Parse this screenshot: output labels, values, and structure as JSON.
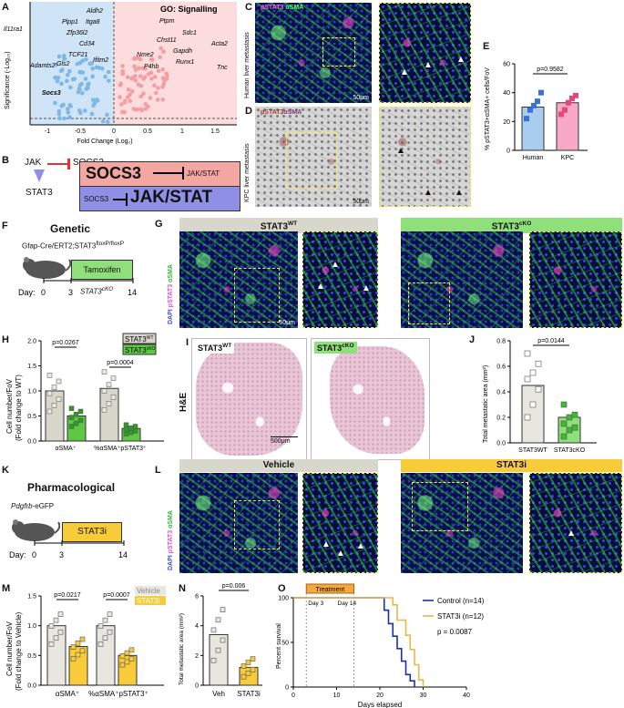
{
  "panels": {
    "A": "A",
    "B": "B",
    "C": "C",
    "D": "D",
    "E": "E",
    "F": "F",
    "G": "G",
    "H": "H",
    "I": "I",
    "J": "J",
    "K": "K",
    "L": "L",
    "M": "M",
    "N": "N",
    "O": "O"
  },
  "panelA": {
    "ylabel": "Significance (-Log₁₀)",
    "xlabel": "Fold Change (Log₂)",
    "go_label": "GO: Signalling",
    "left_genes": [
      "Aldh2",
      "Plpp1",
      "Itga8",
      "Il11ra1",
      "Zfp36l2",
      "Cd34",
      "TCF21",
      "Adamts2",
      "Gls2",
      "Ifitm2",
      "Socs3"
    ],
    "right_genes": [
      "Ptpm",
      "Sdc1",
      "Chst11",
      "Acta2",
      "Gapdh",
      "Nme2",
      "Runx1",
      "P4hb",
      "Tnc"
    ],
    "xticks": [
      "-1",
      "-0.5",
      "0",
      "0.5",
      "1",
      "1.5"
    ]
  },
  "panelB": {
    "jak": "JAK",
    "socs3": "SOCS3",
    "stat3": "STAT3",
    "box1_left": "SOCS3",
    "box1_right": "JAK/STAT",
    "box2_left": "SOCS3",
    "box2_right": "JAK/STAT",
    "colors": {
      "box1": "#f4a6a2",
      "box2": "#8f8fe6"
    }
  },
  "panelC": {
    "stain_pstat": "pSTAT3",
    "stain_asma": "αSMA",
    "side": "Human liver metastasis",
    "scale": "50μm"
  },
  "panelD": {
    "stain_pstat": "pSTAT3",
    "stain_asma": "αSMA",
    "side": "KPC liver metastasis",
    "scale": "50μm"
  },
  "panelE": {
    "ylabel": "% pSTAT3+αSMA+ cells/FoV",
    "pval": "p=0.9582",
    "yticks": [
      "0",
      "20",
      "40",
      "60"
    ],
    "chart_data": {
      "type": "bar",
      "categories": [
        "Human",
        "KPC"
      ],
      "values": [
        30,
        33
      ],
      "ylabel": "% pSTAT3+αSMA+ cells/FoV",
      "ylim": [
        0,
        60
      ],
      "points": [
        [
          22,
          28,
          31,
          34,
          40
        ],
        [
          25,
          28,
          33,
          36,
          38
        ]
      ],
      "colors": [
        "#a9cdee",
        "#f7a9c6"
      ]
    }
  },
  "panelF": {
    "title": "Genetic",
    "genotype": "Gfap-Cre/ERT2;STAT3",
    "genotype_sup": "floxP/floxP",
    "treatment": "Tamoxifen",
    "day_label": "Day:",
    "days": [
      "0",
      "3",
      "14"
    ],
    "cko": "STAT3",
    "cko_sup": "cKO"
  },
  "panelG": {
    "wt": "STAT3",
    "wt_sup": "WT",
    "cko": "STAT3",
    "cko_sup": "cKO",
    "side_dapi": "DAPI",
    "side_pstat": "pSTAT3",
    "side_asma": "αSMA",
    "scale": "50μm",
    "colors": {
      "wt_bar": "#d8d7cc",
      "cko_bar": "#8fe07a"
    }
  },
  "panelH": {
    "ylabel1": "Cell number/FoV",
    "ylabel2": "(Fold change to WT)",
    "p1": "p=0.0267",
    "p2": "p=0.0004",
    "legend_wt": "STAT3",
    "legend_wt_sup": "WT",
    "legend_cko": "STAT3",
    "legend_cko_sup": "cKO",
    "xcat1": "αSMA⁺",
    "xcat2": "%αSMA⁺pSTAT3⁺",
    "yticks": [
      "0.0",
      "0.5",
      "1.0",
      "1.5",
      "2.0"
    ],
    "chart_data": {
      "type": "bar",
      "categories": [
        "αSMA⁺",
        "%αSMA⁺pSTAT3⁺"
      ],
      "series": [
        {
          "name": "STAT3WT",
          "values": [
            1.0,
            1.05
          ]
        },
        {
          "name": "STAT3cKO",
          "values": [
            0.5,
            0.25
          ]
        }
      ],
      "ylim": [
        0,
        2.0
      ],
      "colors": [
        "#d8d7cc",
        "#5fc744"
      ]
    }
  },
  "panelI": {
    "side": "H&E",
    "wt": "STAT3",
    "wt_sup": "WT",
    "cko": "STAT3",
    "cko_sup": "cKO",
    "scale": "500μm"
  },
  "panelJ": {
    "ylabel": "Total metastatic area (mm²)",
    "pval": "p=0.0144",
    "yticks": [
      "0.0",
      "0.2",
      "0.4",
      "0.6",
      "0.8"
    ],
    "xcats": [
      "STAT3WT",
      "STAT3cKO"
    ],
    "chart_data": {
      "type": "bar",
      "categories": [
        "STAT3WT",
        "STAT3cKO"
      ],
      "values": [
        0.45,
        0.2
      ],
      "ylabel": "Total metastatic area (mm²)",
      "ylim": [
        0,
        0.8
      ],
      "points": [
        [
          0.2,
          0.3,
          0.42,
          0.5,
          0.55,
          0.62,
          0.7
        ],
        [
          0.05,
          0.1,
          0.12,
          0.15,
          0.2,
          0.22,
          0.3
        ]
      ],
      "colors": [
        "#e7e6df",
        "#8fe07a"
      ]
    }
  },
  "panelK": {
    "title": "Pharmacological",
    "reporter": "Pdgfrb",
    "reporter_suffix": "-eGFP",
    "treatment": "STAT3i",
    "day_label": "Day:",
    "days": [
      "0",
      "3",
      "14"
    ]
  },
  "panelL": {
    "vehicle": "Vehicle",
    "stat3i": "STAT3i",
    "side_dapi": "DAPI",
    "side_pstat": "pSTAT3",
    "side_asma": "αSMA",
    "colors": {
      "veh_bar": "#d8d7cc",
      "i_bar": "#f7cb3a"
    }
  },
  "panelM": {
    "ylabel1": "Cell number/FoV",
    "ylabel2": "(Fold change to Vehicle)",
    "p1": "p=0.0217",
    "p2": "p=0.0007",
    "legend_veh": "Vehicle",
    "legend_i": "STAT3i",
    "xcat1": "αSMA⁺",
    "xcat2": "%αSMA⁺pSTAT3⁺",
    "yticks": [
      "0.0",
      "0.5",
      "1.0",
      "1.5"
    ],
    "chart_data": {
      "type": "bar",
      "categories": [
        "αSMA⁺",
        "%αSMA⁺pSTAT3⁺"
      ],
      "series": [
        {
          "name": "Vehicle",
          "values": [
            1.0,
            1.0
          ]
        },
        {
          "name": "STAT3i",
          "values": [
            0.65,
            0.5
          ]
        }
      ],
      "ylim": [
        0,
        1.5
      ],
      "colors": [
        "#e7e6df",
        "#f7cb3a"
      ]
    }
  },
  "panelN": {
    "ylabel": "Total metastatic area (mm²)",
    "pval": "p=0.006",
    "yticks": [
      "0",
      "2",
      "4",
      "6"
    ],
    "xcats": [
      "Veh",
      "STAT3i"
    ],
    "chart_data": {
      "type": "bar",
      "categories": [
        "Veh",
        "STAT3i"
      ],
      "values": [
        3.4,
        1.2
      ],
      "ylabel": "Total metastatic area (mm²)",
      "ylim": [
        0,
        6
      ],
      "colors": [
        "#e7e6df",
        "#f7cb3a"
      ]
    }
  },
  "panelO": {
    "treatment": "Treatment",
    "day3": "Day 3",
    "day14": "Day 14",
    "legend_control": "Control (n=14)",
    "legend_i": "STAT3i (n=12)",
    "pval": "p = 0.0087",
    "ylabel": "Percent survival",
    "xlabel": "Days elapsed",
    "yticks": [
      "0",
      "50",
      "100"
    ],
    "xticks": [
      "0",
      "10",
      "20",
      "30",
      "40"
    ],
    "chart_data": {
      "type": "line",
      "xlabel": "Days elapsed",
      "ylabel": "Percent survival",
      "xlim": [
        0,
        40
      ],
      "ylim": [
        0,
        100
      ],
      "series": [
        {
          "name": "Control (n=14)",
          "x": [
            0,
            20,
            21,
            22,
            23,
            24,
            25,
            26,
            27,
            28
          ],
          "y": [
            100,
            100,
            86,
            71,
            57,
            43,
            29,
            14,
            7,
            0
          ]
        },
        {
          "name": "STAT3i (n=12)",
          "x": [
            0,
            22,
            23,
            24,
            26,
            27,
            28,
            29,
            30
          ],
          "y": [
            100,
            100,
            92,
            75,
            58,
            42,
            25,
            8,
            0
          ]
        }
      ],
      "colors": [
        "#1a2fb8",
        "#e8b84a"
      ]
    }
  }
}
